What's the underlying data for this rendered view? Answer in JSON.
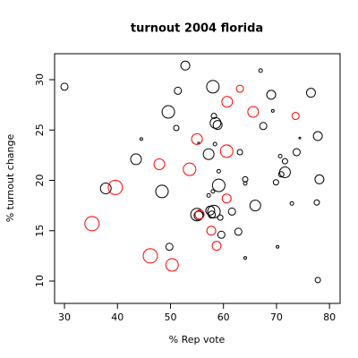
{
  "chart_data": {
    "type": "scatter",
    "title": "turnout 2004  florida",
    "x_label": "% Rep vote",
    "y_label": "% turnout change",
    "xlim": [
      28.14,
      82.0
    ],
    "ylim": [
      7.78,
      32.58
    ],
    "xticks": [
      30,
      40,
      50,
      60,
      70,
      80
    ],
    "yticks": [
      10,
      15,
      20,
      25,
      30
    ],
    "series": [
      {
        "color": "#000000",
        "x": [
          30.0,
          52.8,
          67.0,
          58.0,
          51.4,
          69.0,
          76.5,
          69.3,
          49.6,
          58.2,
          58.5,
          58.9,
          51.1,
          67.5,
          44.5,
          77.8,
          74.4,
          58.4,
          55.3,
          63.1,
          57.2,
          73.8,
          70.7,
          71.6,
          43.5,
          59.1,
          71.6,
          70.9,
          78.1,
          64.1,
          64.1,
          69.9,
          59.1,
          37.8,
          48.4,
          58.0,
          57.2,
          77.6,
          72.9,
          66.0,
          57.5,
          58.2,
          61.6,
          57.8,
          59.4,
          55.3,
          55.0,
          59.6,
          62.8,
          49.8,
          70.2,
          64.1,
          77.8
        ],
        "values": [
          29.3,
          31.4,
          30.9,
          29.3,
          28.9,
          28.5,
          28.7,
          26.9,
          26.8,
          26.4,
          25.7,
          25.5,
          25.2,
          25.4,
          24.1,
          24.4,
          24.2,
          23.6,
          23.7,
          22.8,
          22.6,
          22.8,
          22.4,
          21.9,
          22.1,
          20.9,
          20.8,
          20.6,
          20.1,
          20.1,
          19.7,
          19.8,
          19.5,
          19.2,
          18.9,
          18.9,
          18.5,
          17.8,
          17.7,
          17.5,
          17.0,
          16.9,
          16.9,
          16.6,
          16.3,
          16.5,
          16.6,
          14.6,
          14.9,
          13.4,
          13.4,
          12.3,
          10.1
        ],
        "sizes": [
          4,
          5,
          2,
          7,
          4,
          5,
          5,
          1.5,
          7,
          3,
          6,
          5,
          3,
          4,
          1.5,
          5,
          1,
          2,
          1,
          3,
          6,
          4,
          2,
          3,
          6,
          2,
          6,
          3,
          5,
          3,
          2,
          3,
          7,
          6,
          7,
          2,
          2,
          3,
          2,
          6,
          5,
          7,
          4,
          4,
          3,
          5,
          7,
          4,
          4,
          4,
          1.5,
          1.5,
          3
        ]
      },
      {
        "color": "#ff0000",
        "x": [
          63.1,
          73.6,
          60.7,
          65.6,
          55.0,
          60.6,
          47.9,
          53.6,
          39.6,
          60.6,
          55.5,
          35.2,
          57.7,
          58.7,
          46.2,
          50.3
        ],
        "values": [
          29.1,
          26.4,
          27.8,
          26.8,
          24.1,
          22.9,
          21.6,
          21.1,
          19.3,
          18.2,
          16.6,
          15.7,
          15.0,
          13.5,
          12.5,
          11.6
        ],
        "sizes": [
          4,
          4,
          6,
          6,
          6,
          7,
          6,
          7,
          8,
          5,
          5,
          8,
          5,
          5,
          8,
          7
        ]
      }
    ]
  }
}
